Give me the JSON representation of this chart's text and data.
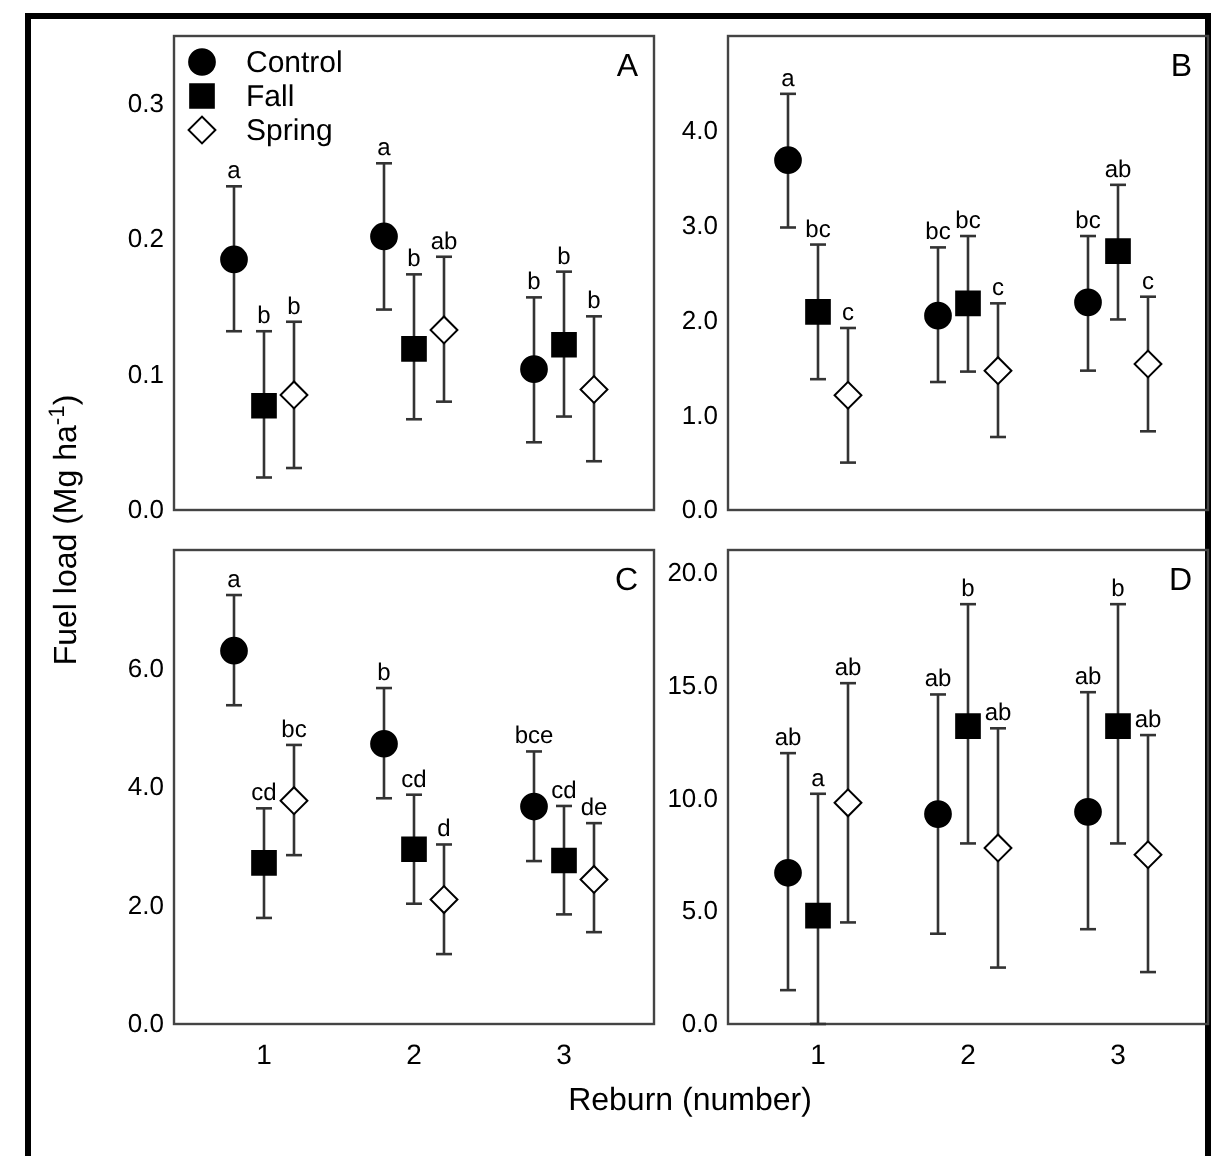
{
  "chart_data": [
    {
      "type": "scatter",
      "title": "A",
      "ylabel": "Fuel load (Mg ha$^{-1}$)",
      "xlim": [
        0.4,
        3.6
      ],
      "xticks": [
        1,
        2,
        3
      ],
      "ylim": [
        0,
        0.35
      ],
      "yticks": [
        {
          "value": 0,
          "label": "0.0"
        },
        0.1,
        0.2,
        0.3
      ],
      "tick_labels": "y",
      "legend": "top left",
      "series": [
        {
          "name": "Control",
          "color": "#000000",
          "marker": "circle",
          "x": [
            0.8,
            1.8,
            2.8
          ],
          "values": [
            0.185,
            0.202,
            0.104
          ],
          "errors": [
            [
              0.132,
              0.239
            ],
            [
              0.148,
              0.256
            ],
            [
              0.05,
              0.157
            ]
          ]
        },
        {
          "name": "Fall",
          "color": "#000000",
          "marker": "square",
          "x": [
            1,
            2,
            3
          ],
          "values": [
            0.077,
            0.119,
            0.122
          ],
          "errors": [
            [
              0.024,
              0.132
            ],
            [
              0.067,
              0.174
            ],
            [
              0.069,
              0.176
            ]
          ]
        },
        {
          "name": "Spring",
          "color": "#ffffff",
          "marker": "diamond",
          "x": [
            1.2,
            2.2,
            3.2
          ],
          "values": [
            0.085,
            0.133,
            0.089
          ],
          "errors": [
            [
              0.031,
              0.139
            ],
            [
              0.08,
              0.187
            ],
            [
              0.036,
              0.143
            ]
          ]
        }
      ],
      "annotations": [
        {
          "text": "a",
          "x": 0.8,
          "y": 0.239
        },
        {
          "text": "a",
          "x": 1.8,
          "y": 0.256
        },
        {
          "text": "b",
          "x": 2.8,
          "y": 0.157
        },
        {
          "text": "b",
          "x": 1,
          "y": 0.132
        },
        {
          "text": "b",
          "x": 2,
          "y": 0.174
        },
        {
          "text": "b",
          "x": 3,
          "y": 0.176
        },
        {
          "text": "b",
          "x": 1.2,
          "y": 0.139
        },
        {
          "text": "ab",
          "x": 2.2,
          "y": 0.187
        },
        {
          "text": "b",
          "x": 3.2,
          "y": 0.143
        }
      ]
    },
    {
      "type": "scatter",
      "title": "B",
      "xlim": [
        0.4,
        3.6
      ],
      "xticks": [
        1,
        2,
        3
      ],
      "ylim": [
        0,
        5
      ],
      "yticks": [
        {
          "value": 0,
          "label": "0.0"
        },
        {
          "value": 1,
          "label": "1.0"
        },
        {
          "value": 2,
          "label": "2.0"
        },
        {
          "value": 3,
          "label": "3.0"
        },
        {
          "value": 4,
          "label": "4.0"
        }
      ],
      "tick_labels": "y",
      "series": [
        {
          "color": "#000000",
          "marker": "circle",
          "x": [
            0.8,
            1.8,
            2.8
          ],
          "values": [
            3.69,
            2.05,
            2.19
          ],
          "errors": [
            [
              2.98,
              4.39
            ],
            [
              1.35,
              2.77
            ],
            [
              1.47,
              2.89
            ]
          ]
        },
        {
          "color": "#000000",
          "marker": "square",
          "x": [
            1,
            2,
            3
          ],
          "values": [
            2.09,
            2.18,
            2.73
          ],
          "errors": [
            [
              1.38,
              2.8
            ],
            [
              1.46,
              2.89
            ],
            [
              2.01,
              3.43
            ]
          ]
        },
        {
          "color": "#ffffff",
          "marker": "diamond",
          "x": [
            1.2,
            2.2,
            3.2
          ],
          "values": [
            1.21,
            1.47,
            1.54
          ],
          "errors": [
            [
              0.5,
              1.92
            ],
            [
              0.77,
              2.18
            ],
            [
              0.83,
              2.25
            ]
          ]
        }
      ],
      "annotations": [
        {
          "text": "a",
          "x": 0.8,
          "y": 4.39
        },
        {
          "text": "bc",
          "x": 1.8,
          "y": 2.77
        },
        {
          "text": "bc",
          "x": 2.8,
          "y": 2.89
        },
        {
          "text": "bc",
          "x": 1,
          "y": 2.8
        },
        {
          "text": "bc",
          "x": 2,
          "y": 2.89
        },
        {
          "text": "ab",
          "x": 3,
          "y": 3.43
        },
        {
          "text": "c",
          "x": 1.2,
          "y": 1.92
        },
        {
          "text": "c",
          "x": 2.2,
          "y": 2.18
        },
        {
          "text": "c",
          "x": 3.2,
          "y": 2.25
        }
      ]
    },
    {
      "type": "scatter",
      "title": "C",
      "xlabel": "Reburn (number)",
      "xlim": [
        0.4,
        3.6
      ],
      "xticks": [
        1,
        2,
        3
      ],
      "ylim": [
        0,
        8
      ],
      "yticks": [
        {
          "value": 0,
          "label": "0.0"
        },
        {
          "value": 2,
          "label": "2.0"
        },
        {
          "value": 4,
          "label": "4.0"
        },
        {
          "value": 6,
          "label": "6.0"
        }
      ],
      "series": [
        {
          "color": "#000000",
          "marker": "circle",
          "x": [
            0.8,
            1.8,
            2.8
          ],
          "values": [
            6.3,
            4.73,
            3.67
          ],
          "errors": [
            [
              5.38,
              7.24
            ],
            [
              3.81,
              5.67
            ],
            [
              2.75,
              4.6
            ]
          ]
        },
        {
          "color": "#000000",
          "marker": "square",
          "x": [
            1,
            2,
            3
          ],
          "values": [
            2.72,
            2.95,
            2.76
          ],
          "errors": [
            [
              1.79,
              3.64
            ],
            [
              2.03,
              3.87
            ],
            [
              1.85,
              3.68
            ]
          ]
        },
        {
          "color": "#ffffff",
          "marker": "diamond",
          "x": [
            1.2,
            2.2,
            3.2
          ],
          "values": [
            3.77,
            2.1,
            2.44
          ],
          "errors": [
            [
              2.85,
              4.71
            ],
            [
              1.18,
              3.03
            ],
            [
              1.55,
              3.39
            ]
          ]
        }
      ],
      "annotations": [
        {
          "text": "a",
          "x": 0.8,
          "y": 7.24
        },
        {
          "text": "b",
          "x": 1.8,
          "y": 5.67
        },
        {
          "text": "bce",
          "x": 2.8,
          "y": 4.6
        },
        {
          "text": "cd",
          "x": 1,
          "y": 3.64
        },
        {
          "text": "cd",
          "x": 2,
          "y": 3.87
        },
        {
          "text": "cd",
          "x": 3,
          "y": 3.68
        },
        {
          "text": "bc",
          "x": 1.2,
          "y": 4.71
        },
        {
          "text": "d",
          "x": 2.2,
          "y": 3.03
        },
        {
          "text": "de",
          "x": 3.2,
          "y": 3.39
        }
      ]
    },
    {
      "type": "scatter",
      "title": "D",
      "xlim": [
        0.4,
        3.6
      ],
      "xticks": [
        1,
        2,
        3
      ],
      "ylim": [
        0,
        21
      ],
      "yticks": [
        {
          "value": 0,
          "label": "0.0"
        },
        {
          "value": 5,
          "label": "5.0"
        },
        {
          "value": 10,
          "label": "10.0"
        },
        {
          "value": 15,
          "label": "15.0"
        },
        {
          "value": 20,
          "label": "20.0"
        }
      ],
      "series": [
        {
          "color": "#000000",
          "marker": "circle",
          "x": [
            0.8,
            1.8,
            2.8
          ],
          "values": [
            6.7,
            9.3,
            9.4
          ],
          "errors": [
            [
              1.5,
              12
            ],
            [
              4,
              14.6
            ],
            [
              4.2,
              14.7
            ]
          ]
        },
        {
          "color": "#000000",
          "marker": "square",
          "x": [
            1,
            2,
            3
          ],
          "values": [
            4.8,
            13.2,
            13.2
          ],
          "errors": [
            [
              0,
              10.2
            ],
            [
              8,
              18.6
            ],
            [
              8,
              18.6
            ]
          ]
        },
        {
          "color": "#ffffff",
          "marker": "diamond",
          "x": [
            1.2,
            2.2,
            3.2
          ],
          "values": [
            9.8,
            7.8,
            7.5
          ],
          "errors": [
            [
              4.5,
              15.1
            ],
            [
              2.5,
              13.1
            ],
            [
              2.3,
              12.8
            ]
          ]
        }
      ],
      "annotations": [
        {
          "text": "ab",
          "x": 0.8,
          "y": 12
        },
        {
          "text": "ab",
          "x": 1.8,
          "y": 14.6
        },
        {
          "text": "ab",
          "x": 2.8,
          "y": 14.7
        },
        {
          "text": "a",
          "x": 1,
          "y": 10.2
        },
        {
          "text": "b",
          "x": 2,
          "y": 18.6
        },
        {
          "text": "b",
          "x": 3,
          "y": 18.6
        },
        {
          "text": "ab",
          "x": 1.2,
          "y": 15.1
        },
        {
          "text": "ab",
          "x": 2.2,
          "y": 13.1
        },
        {
          "text": "ab",
          "x": 3.2,
          "y": 12.8
        }
      ]
    }
  ]
}
